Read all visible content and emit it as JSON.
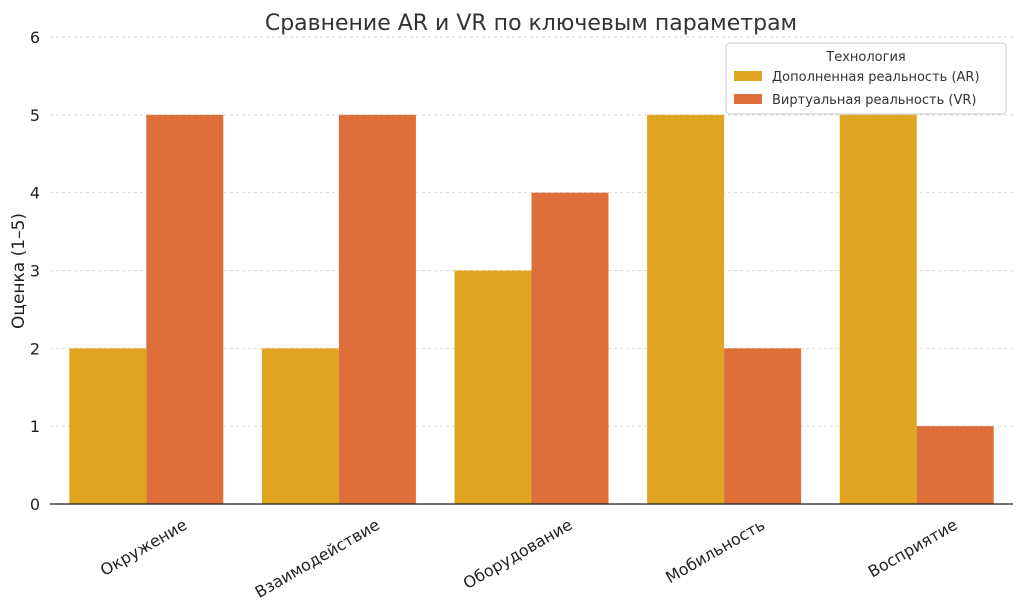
{
  "chart_data": {
    "type": "bar",
    "title": "Сравнение AR и VR по ключевым параметрам",
    "xlabel": "",
    "ylabel": "Оценка (1–5)",
    "ylim": [
      0,
      6
    ],
    "yticks": [
      0,
      1,
      2,
      3,
      4,
      5,
      6
    ],
    "grid": true,
    "categories": [
      "Окружение",
      "Взаимодействие",
      "Оборудование",
      "Мобильность",
      "Восприятие"
    ],
    "series": [
      {
        "name": "Дополненная реальность (AR)",
        "values": [
          2,
          2,
          3,
          5,
          5
        ],
        "color": "#E0A420"
      },
      {
        "name": "Виртуальная реальность (VR)",
        "values": [
          5,
          5,
          4,
          2,
          1
        ],
        "color": "#DE6F3A"
      }
    ],
    "legend": {
      "title": "Технология",
      "position": "top-right"
    }
  }
}
